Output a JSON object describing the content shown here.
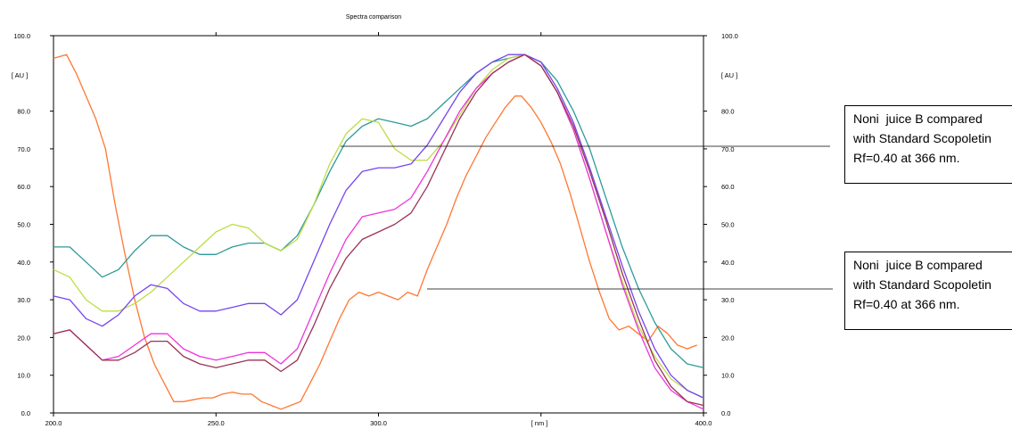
{
  "chart_data": {
    "type": "line",
    "title": "Spectra comparison",
    "xlabel": "[ nm ]",
    "ylabel": "[ AU ]",
    "ylabel_right": "[ AU ]",
    "xlim": [
      200,
      400
    ],
    "ylim": [
      0,
      100
    ],
    "x_ticks": [
      "200.0",
      "250.0",
      "300.0",
      "400.0"
    ],
    "y_ticks": [
      "0.0",
      "10.0",
      "20.0",
      "30.0",
      "40.0",
      "50.0",
      "60.0",
      "70.0",
      "80.0",
      "100.0"
    ],
    "grid": false,
    "legend": "none",
    "series": [
      {
        "color": "#ff7733",
        "points": [
          [
            200,
            94
          ],
          [
            204,
            95
          ],
          [
            207,
            90
          ],
          [
            210,
            84
          ],
          [
            213,
            78
          ],
          [
            216,
            70
          ],
          [
            219,
            55
          ],
          [
            222,
            42
          ],
          [
            225,
            30
          ],
          [
            228,
            20
          ],
          [
            231,
            13
          ],
          [
            234,
            8
          ],
          [
            237,
            3
          ],
          [
            240,
            3
          ],
          [
            243,
            3.5
          ],
          [
            246,
            4
          ],
          [
            249,
            4
          ],
          [
            252,
            5
          ],
          [
            255,
            5.5
          ],
          [
            258,
            5
          ],
          [
            261,
            5
          ],
          [
            264,
            3
          ],
          [
            267,
            2
          ],
          [
            270,
            1
          ],
          [
            273,
            2
          ],
          [
            276,
            3
          ],
          [
            279,
            8
          ],
          [
            282,
            13
          ],
          [
            285,
            19
          ],
          [
            288,
            25
          ],
          [
            291,
            30
          ],
          [
            294,
            32
          ],
          [
            297,
            31
          ],
          [
            300,
            32
          ],
          [
            303,
            31
          ],
          [
            306,
            30
          ],
          [
            309,
            32
          ],
          [
            312,
            31
          ],
          [
            315,
            38
          ],
          [
            318,
            44
          ],
          [
            321,
            50
          ],
          [
            324,
            57
          ],
          [
            327,
            63
          ],
          [
            330,
            68
          ],
          [
            333,
            73
          ],
          [
            336,
            77
          ],
          [
            339,
            81
          ],
          [
            342,
            84
          ],
          [
            344,
            84
          ],
          [
            347,
            81
          ],
          [
            350,
            77
          ],
          [
            353,
            72
          ],
          [
            356,
            66
          ],
          [
            359,
            58
          ],
          [
            362,
            49
          ],
          [
            365,
            40
          ],
          [
            368,
            32
          ],
          [
            371,
            25
          ],
          [
            374,
            22
          ],
          [
            377,
            23
          ],
          [
            380,
            21
          ],
          [
            383,
            19
          ],
          [
            386,
            23
          ],
          [
            389,
            21
          ],
          [
            392,
            18
          ],
          [
            395,
            17
          ],
          [
            398,
            18
          ]
        ]
      },
      {
        "color": "#2e9a9a",
        "points": [
          [
            200,
            44
          ],
          [
            205,
            44
          ],
          [
            210,
            40
          ],
          [
            215,
            36
          ],
          [
            220,
            38
          ],
          [
            225,
            43
          ],
          [
            230,
            47
          ],
          [
            235,
            47
          ],
          [
            240,
            44
          ],
          [
            245,
            42
          ],
          [
            250,
            42
          ],
          [
            255,
            44
          ],
          [
            260,
            45
          ],
          [
            265,
            45
          ],
          [
            270,
            43
          ],
          [
            275,
            47
          ],
          [
            280,
            55
          ],
          [
            285,
            64
          ],
          [
            290,
            72
          ],
          [
            295,
            76
          ],
          [
            300,
            78
          ],
          [
            305,
            77
          ],
          [
            310,
            76
          ],
          [
            315,
            78
          ],
          [
            320,
            82
          ],
          [
            325,
            86
          ],
          [
            330,
            90
          ],
          [
            335,
            93
          ],
          [
            340,
            94
          ],
          [
            345,
            95
          ],
          [
            350,
            93
          ],
          [
            355,
            88
          ],
          [
            360,
            80
          ],
          [
            365,
            70
          ],
          [
            370,
            57
          ],
          [
            375,
            44
          ],
          [
            380,
            33
          ],
          [
            385,
            24
          ],
          [
            390,
            17
          ],
          [
            395,
            13
          ],
          [
            400,
            12
          ]
        ]
      },
      {
        "color": "#bbdd44",
        "points": [
          [
            200,
            38
          ],
          [
            205,
            36
          ],
          [
            210,
            30
          ],
          [
            215,
            27
          ],
          [
            220,
            27
          ],
          [
            225,
            29
          ],
          [
            230,
            32
          ],
          [
            235,
            36
          ],
          [
            240,
            40
          ],
          [
            245,
            44
          ],
          [
            250,
            48
          ],
          [
            255,
            50
          ],
          [
            260,
            49
          ],
          [
            265,
            45
          ],
          [
            270,
            43
          ],
          [
            275,
            46
          ],
          [
            280,
            55
          ],
          [
            285,
            66
          ],
          [
            290,
            74
          ],
          [
            295,
            78
          ],
          [
            300,
            77
          ],
          [
            305,
            70
          ],
          [
            310,
            67
          ],
          [
            315,
            67
          ],
          [
            320,
            72
          ],
          [
            325,
            79
          ],
          [
            330,
            86
          ],
          [
            335,
            91
          ],
          [
            340,
            94
          ],
          [
            345,
            95
          ],
          [
            350,
            92
          ],
          [
            355,
            85
          ],
          [
            360,
            75
          ],
          [
            365,
            62
          ],
          [
            370,
            48
          ],
          [
            375,
            35
          ],
          [
            380,
            23
          ],
          [
            385,
            15
          ],
          [
            390,
            9
          ],
          [
            395,
            6
          ],
          [
            400,
            4
          ]
        ]
      },
      {
        "color": "#7744ee",
        "points": [
          [
            200,
            31
          ],
          [
            205,
            30
          ],
          [
            210,
            25
          ],
          [
            215,
            23
          ],
          [
            220,
            26
          ],
          [
            225,
            31
          ],
          [
            230,
            34
          ],
          [
            235,
            33
          ],
          [
            240,
            29
          ],
          [
            245,
            27
          ],
          [
            250,
            27
          ],
          [
            255,
            28
          ],
          [
            260,
            29
          ],
          [
            265,
            29
          ],
          [
            270,
            26
          ],
          [
            275,
            30
          ],
          [
            280,
            40
          ],
          [
            285,
            50
          ],
          [
            290,
            59
          ],
          [
            295,
            64
          ],
          [
            300,
            65
          ],
          [
            305,
            65
          ],
          [
            310,
            66
          ],
          [
            315,
            71
          ],
          [
            320,
            78
          ],
          [
            325,
            85
          ],
          [
            330,
            90
          ],
          [
            335,
            93
          ],
          [
            340,
            95
          ],
          [
            345,
            95
          ],
          [
            350,
            93
          ],
          [
            355,
            86
          ],
          [
            360,
            77
          ],
          [
            365,
            65
          ],
          [
            370,
            52
          ],
          [
            375,
            39
          ],
          [
            380,
            27
          ],
          [
            385,
            17
          ],
          [
            390,
            10
          ],
          [
            395,
            6
          ],
          [
            400,
            4
          ]
        ]
      },
      {
        "color": "#ee33dd",
        "points": [
          [
            200,
            21
          ],
          [
            205,
            22
          ],
          [
            210,
            18
          ],
          [
            215,
            14
          ],
          [
            220,
            15
          ],
          [
            225,
            18
          ],
          [
            230,
            21
          ],
          [
            235,
            21
          ],
          [
            240,
            17
          ],
          [
            245,
            15
          ],
          [
            250,
            14
          ],
          [
            255,
            15
          ],
          [
            260,
            16
          ],
          [
            265,
            16
          ],
          [
            270,
            13
          ],
          [
            275,
            17
          ],
          [
            280,
            27
          ],
          [
            285,
            37
          ],
          [
            290,
            46
          ],
          [
            295,
            52
          ],
          [
            300,
            53
          ],
          [
            305,
            54
          ],
          [
            310,
            57
          ],
          [
            315,
            64
          ],
          [
            320,
            72
          ],
          [
            325,
            80
          ],
          [
            330,
            86
          ],
          [
            335,
            90
          ],
          [
            340,
            93
          ],
          [
            345,
            95
          ],
          [
            350,
            92
          ],
          [
            355,
            85
          ],
          [
            360,
            75
          ],
          [
            365,
            62
          ],
          [
            370,
            48
          ],
          [
            375,
            34
          ],
          [
            380,
            22
          ],
          [
            385,
            12
          ],
          [
            390,
            6
          ],
          [
            395,
            3
          ],
          [
            400,
            1
          ]
        ]
      },
      {
        "color": "#993355",
        "points": [
          [
            200,
            21
          ],
          [
            205,
            22
          ],
          [
            210,
            18
          ],
          [
            215,
            14
          ],
          [
            220,
            14
          ],
          [
            225,
            16
          ],
          [
            230,
            19
          ],
          [
            235,
            19
          ],
          [
            240,
            15
          ],
          [
            245,
            13
          ],
          [
            250,
            12
          ],
          [
            255,
            13
          ],
          [
            260,
            14
          ],
          [
            265,
            14
          ],
          [
            270,
            11
          ],
          [
            275,
            14
          ],
          [
            280,
            23
          ],
          [
            285,
            33
          ],
          [
            290,
            41
          ],
          [
            295,
            46
          ],
          [
            300,
            48
          ],
          [
            305,
            50
          ],
          [
            310,
            53
          ],
          [
            315,
            60
          ],
          [
            320,
            69
          ],
          [
            325,
            78
          ],
          [
            330,
            85
          ],
          [
            335,
            90
          ],
          [
            340,
            93
          ],
          [
            345,
            95
          ],
          [
            350,
            92
          ],
          [
            355,
            85
          ],
          [
            360,
            76
          ],
          [
            365,
            64
          ],
          [
            370,
            51
          ],
          [
            375,
            37
          ],
          [
            380,
            25
          ],
          [
            385,
            14
          ],
          [
            390,
            7
          ],
          [
            395,
            3
          ],
          [
            400,
            2
          ]
        ]
      }
    ]
  },
  "callouts": [
    {
      "lines": [
        "Noni  juice B compared",
        "with Standard Scopoletin",
        "Rf=0.40 at 366 nm."
      ]
    },
    {
      "lines": [
        "Noni  juice B compared",
        "with Standard Scopoletin",
        "Rf=0.40 at 366 nm."
      ]
    }
  ]
}
